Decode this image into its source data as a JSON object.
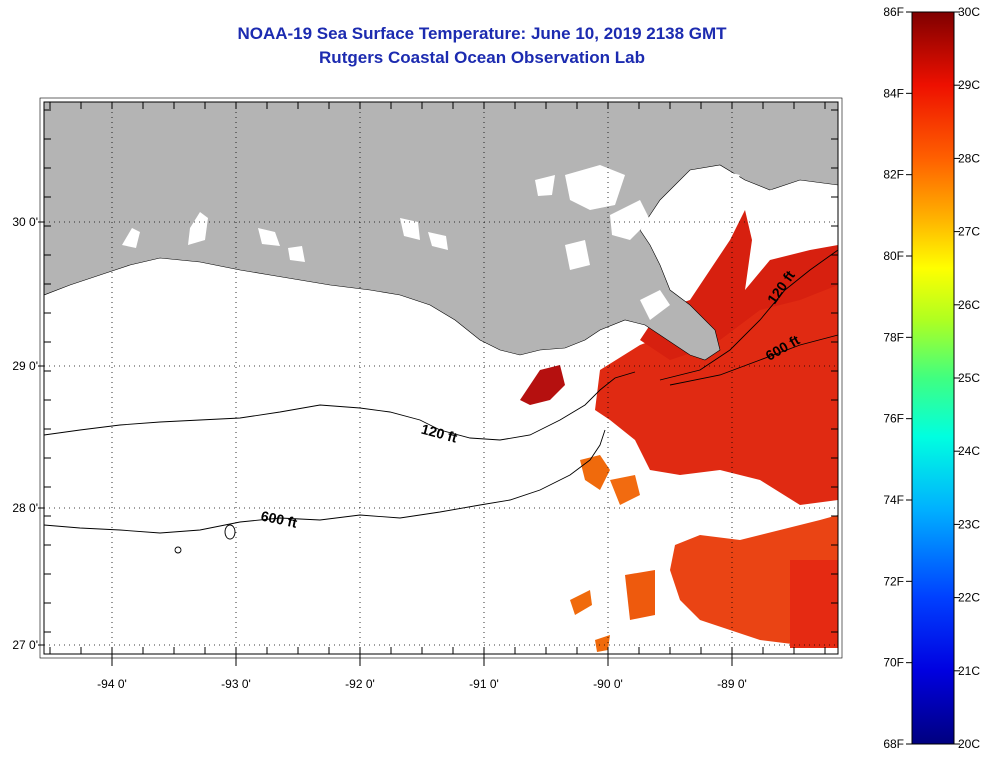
{
  "header": {
    "title": "NOAA-19 Sea Surface Temperature:  June 10, 2019 2138 GMT",
    "subtitle": "Rutgers Coastal Ocean Observation Lab"
  },
  "map": {
    "lon_ticks": [
      "-94 0'",
      "-93 0'",
      "-92 0'",
      "-91 0'",
      "-90 0'",
      "-89 0'"
    ],
    "lat_ticks": [
      "30 0'",
      "29 0'",
      "28 0'",
      "27 0'"
    ],
    "contours": [
      {
        "label": "120 ft"
      },
      {
        "label": "600 ft"
      },
      {
        "label": "120 ft"
      },
      {
        "label": "600 ft"
      }
    ],
    "colors": {
      "land": "#b4b4b4",
      "no_data": "#ffffff",
      "warm_dark": "#b5100f",
      "warm": "#e52a12",
      "orange": "#f06a0c"
    }
  },
  "colorbar": {
    "fahrenheit": [
      "86F",
      "84F",
      "82F",
      "80F",
      "78F",
      "76F",
      "74F",
      "72F",
      "70F",
      "68F"
    ],
    "celsius": [
      "30C",
      "29C",
      "28C",
      "27C",
      "26C",
      "25C",
      "24C",
      "23C",
      "22C",
      "21C",
      "20C"
    ]
  }
}
